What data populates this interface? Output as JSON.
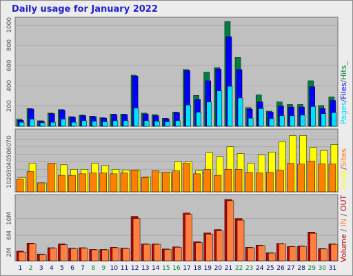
{
  "page": {
    "title": "Daily usage for January 2022",
    "background": "#ececec",
    "plot_background": "#c0c0c0"
  },
  "colors": {
    "pages": "#00e0ff",
    "files": "#0000ff",
    "hits": "#008040",
    "visits": "#ffff00",
    "sites": "#ff8000",
    "kb_in": "#ff8040",
    "kb_out": "#c00000",
    "weekend_label": "#008040",
    "weekday_label": "#000080"
  },
  "chart_data": [
    {
      "type": "bar",
      "id": "hits_files_pages",
      "categories": [
        "1",
        "2",
        "3",
        "4",
        "5",
        "6",
        "7",
        "8",
        "9",
        "10",
        "11",
        "12",
        "13",
        "14",
        "15",
        "16",
        "17",
        "18",
        "19",
        "20",
        "21",
        "22",
        "23",
        "24",
        "25",
        "26",
        "27",
        "28",
        "29",
        "30",
        "31"
      ],
      "weekend_days": [
        "2",
        "8",
        "9",
        "15",
        "16",
        "22",
        "23",
        "29",
        "30"
      ],
      "yticks": [
        "200",
        "400",
        "600",
        "800",
        "1000"
      ],
      "ylim": [
        0,
        1050
      ],
      "legend": [
        {
          "label": "Pages",
          "color": "#00e0ff"
        },
        {
          "label": "Files",
          "color": "#0000ff"
        },
        {
          "label": "Hits",
          "color": "#008040"
        }
      ],
      "series": [
        {
          "name": "Hits",
          "values": [
            70,
            175,
            55,
            130,
            165,
            95,
            110,
            100,
            85,
            120,
            120,
            505,
            130,
            115,
            80,
            140,
            560,
            305,
            535,
            580,
            1035,
            680,
            185,
            310,
            150,
            240,
            215,
            215,
            450,
            205,
            290
          ]
        },
        {
          "name": "Files",
          "values": [
            60,
            170,
            50,
            125,
            160,
            90,
            105,
            95,
            80,
            115,
            115,
            495,
            120,
            105,
            75,
            135,
            550,
            265,
            450,
            565,
            885,
            560,
            170,
            240,
            140,
            200,
            190,
            190,
            390,
            175,
            255
          ]
        },
        {
          "name": "Pages",
          "values": [
            40,
            70,
            35,
            40,
            70,
            40,
            55,
            50,
            45,
            55,
            55,
            180,
            55,
            50,
            45,
            55,
            210,
            140,
            240,
            350,
            395,
            280,
            80,
            175,
            75,
            105,
            105,
            110,
            195,
            125,
            135
          ]
        }
      ]
    },
    {
      "type": "bar",
      "id": "visits_sites",
      "categories": [
        "1",
        "2",
        "3",
        "4",
        "5",
        "6",
        "7",
        "8",
        "9",
        "10",
        "11",
        "12",
        "13",
        "14",
        "15",
        "16",
        "17",
        "18",
        "19",
        "20",
        "21",
        "22",
        "23",
        "24",
        "25",
        "26",
        "27",
        "28",
        "29",
        "30",
        "31"
      ],
      "yticks": [
        "10",
        "20",
        "30",
        "40",
        "50",
        "60",
        "70"
      ],
      "ylim": [
        0,
        80
      ],
      "legend": [
        {
          "label": "Visits",
          "color": "#ffff00"
        },
        {
          "label": "Sites",
          "color": "#ff8000"
        }
      ],
      "series": [
        {
          "name": "Visits",
          "values": [
            19,
            38,
            12,
            37,
            36,
            30,
            30,
            38,
            35,
            30,
            29,
            29,
            20,
            26,
            26,
            40,
            40,
            28,
            52,
            47,
            60,
            51,
            38,
            49,
            53,
            67,
            75,
            75,
            59,
            55,
            63
          ]
        },
        {
          "name": "Sites",
          "values": [
            17,
            27,
            12,
            38,
            22,
            22,
            24,
            25,
            25,
            24,
            25,
            29,
            19,
            28,
            26,
            28,
            38,
            24,
            30,
            22,
            30,
            30,
            26,
            25,
            26,
            29,
            38,
            37,
            41,
            37,
            37
          ]
        }
      ]
    },
    {
      "type": "bar",
      "id": "volume",
      "categories": [
        "1",
        "2",
        "3",
        "4",
        "5",
        "6",
        "7",
        "8",
        "9",
        "10",
        "11",
        "12",
        "13",
        "14",
        "15",
        "16",
        "17",
        "18",
        "19",
        "20",
        "21",
        "22",
        "23",
        "24",
        "25",
        "26",
        "27",
        "28",
        "29",
        "30",
        "31"
      ],
      "yticks": [
        "2M",
        "6M",
        "10M"
      ],
      "ylim": [
        0,
        15
      ],
      "legend": [
        {
          "label": "Volume",
          "color": "#c00000"
        },
        {
          "label": "IN",
          "color": "#ff8040"
        },
        {
          "label": "OUT",
          "color": "#c00000"
        }
      ],
      "series": [
        {
          "name": "OUT",
          "values": [
            2.3,
            4.2,
            1.6,
            3.1,
            4.0,
            3.0,
            3.1,
            2.7,
            2.7,
            3.2,
            3.0,
            10.5,
            4.0,
            4.0,
            2.8,
            3.3,
            11.3,
            4.5,
            6.6,
            7.4,
            14.5,
            10.0,
            3.2,
            3.7,
            1.9,
            4.1,
            3.4,
            3.5,
            6.8,
            2.9,
            4.0
          ]
        },
        {
          "name": "IN",
          "values": [
            2.1,
            4.0,
            1.5,
            3.0,
            3.8,
            2.9,
            3.0,
            2.6,
            2.6,
            3.1,
            2.9,
            10.0,
            3.9,
            3.9,
            2.7,
            3.2,
            11.0,
            4.3,
            6.3,
            7.1,
            14.2,
            9.6,
            3.1,
            3.6,
            1.8,
            4.0,
            3.3,
            3.4,
            6.5,
            2.8,
            3.9
          ]
        }
      ]
    }
  ]
}
